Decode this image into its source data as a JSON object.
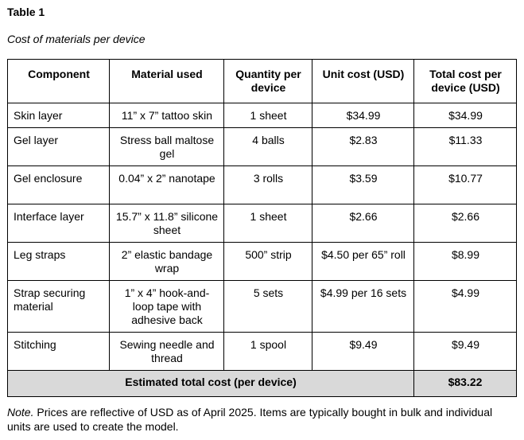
{
  "table_label": "Table 1",
  "table_title": "Cost of materials per device",
  "columns": [
    "Component",
    "Material used",
    "Quantity per device",
    "Unit cost (USD)",
    "Total cost per device (USD)"
  ],
  "rows": [
    {
      "component": "Skin layer",
      "material": "11” x 7” tattoo skin",
      "quantity": "1 sheet",
      "unit_cost": "$34.99",
      "total_cost": "$34.99"
    },
    {
      "component": "Gel layer",
      "material": "Stress ball maltose gel",
      "quantity": "4 balls",
      "unit_cost": "$2.83",
      "total_cost": "$11.33"
    },
    {
      "component": "Gel enclosure",
      "material": "0.04” x 2” nanotape",
      "quantity": "3 rolls",
      "unit_cost": "$3.59",
      "total_cost": "$10.77"
    },
    {
      "component": "Interface layer",
      "material": "15.7” x 11.8” silicone sheet",
      "quantity": "1 sheet",
      "unit_cost": "$2.66",
      "total_cost": "$2.66"
    },
    {
      "component": "Leg straps",
      "material": "2” elastic bandage wrap",
      "quantity": "500” strip",
      "unit_cost": "$4.50 per 65” roll",
      "total_cost": "$8.99"
    },
    {
      "component": "Strap securing material",
      "material": "1” x 4” hook-and-loop tape with adhesive back",
      "quantity": "5 sets",
      "unit_cost": "$4.99 per 16 sets",
      "total_cost": "$4.99"
    },
    {
      "component": "Stitching",
      "material": "Sewing needle and thread",
      "quantity": "1 spool",
      "unit_cost": "$9.49",
      "total_cost": "$9.49"
    }
  ],
  "total": {
    "label": "Estimated total cost (per device)",
    "value": "$83.22"
  },
  "note": {
    "prefix": "Note.",
    "text": " Prices are reflective of USD as of April 2025. Items are typically bought in bulk and individual units are used to create the model."
  }
}
